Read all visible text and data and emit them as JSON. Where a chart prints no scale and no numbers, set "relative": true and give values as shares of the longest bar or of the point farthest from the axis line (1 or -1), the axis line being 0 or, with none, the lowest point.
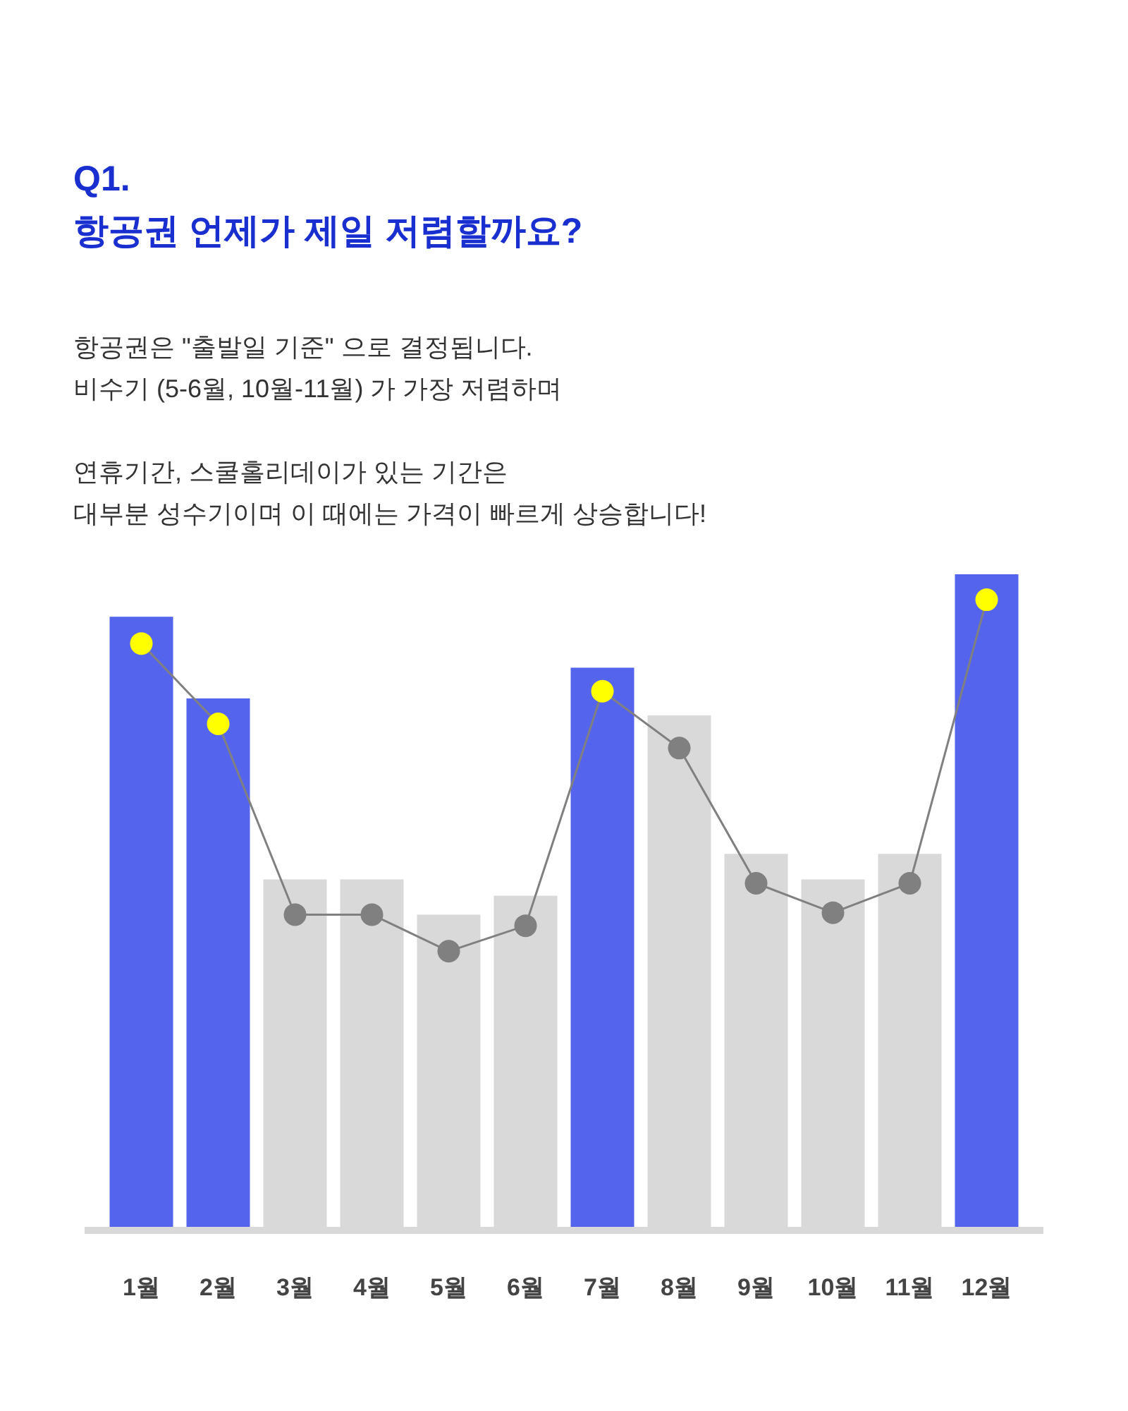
{
  "chart_data": {
    "type": "bar",
    "title": "Q1.\n항공권 언제가 제일 저렴할까요?",
    "subtitle": "항공권은 \"출발일 기준\" 으로 결정됩니다.\n비수기 (5-6월, 10월-11월) 가 가장 저렴하며\n\n연휴기간, 스쿨홀리데이가 있는 기간은\n대부분 성수기이며 이 때에는 가격이 빠르게 상승합니다!",
    "categories": [
      "1월",
      "2월",
      "3월",
      "4월",
      "5월",
      "6월",
      "7월",
      "8월",
      "9월",
      "10월",
      "11월",
      "12월"
    ],
    "relative": true,
    "series": [
      {
        "type": "bar",
        "colors": [
          "#5564ec",
          "#5564ec",
          "#d9d9d9",
          "#d9d9d9",
          "#d9d9d9",
          "#d9d9d9",
          "#5564ec",
          "#d9d9d9",
          "#d9d9d9",
          "#d9d9d9",
          "#d9d9d9",
          "#5564ec"
        ],
        "values": [
          0.935,
          0.81,
          0.533,
          0.533,
          0.479,
          0.508,
          0.857,
          0.784,
          0.572,
          0.533,
          0.572,
          1
        ]
      },
      {
        "type": "line",
        "color": "#808080",
        "marker": "circle",
        "colors": [
          "#ffff00",
          "#ffff00",
          "#808080",
          "#808080",
          "#808080",
          "#808080",
          "#ffff00",
          "#808080",
          "#808080",
          "#808080",
          "#808080",
          "#ffff00"
        ],
        "values": [
          0.894,
          0.771,
          0.479,
          0.479,
          0.423,
          0.462,
          0.821,
          0.734,
          0.527,
          0.482,
          0.527,
          0.961
        ]
      }
    ]
  }
}
